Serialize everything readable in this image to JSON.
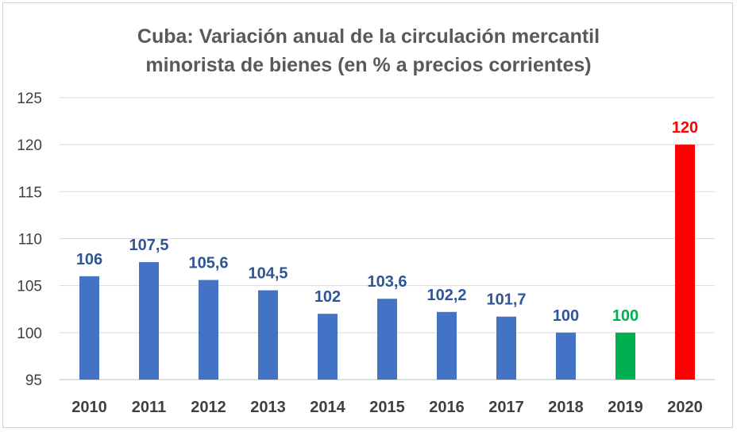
{
  "chart_data": {
    "type": "bar",
    "title": "Cuba: Variación anual de la circulación mercantil minorista de bienes (en % a precios corrientes)",
    "title_lines": [
      "Cuba: Variación anual de la circulación mercantil",
      "minorista de bienes (en % a precios corrientes)"
    ],
    "categories": [
      "2010",
      "2011",
      "2012",
      "2013",
      "2014",
      "2015",
      "2016",
      "2017",
      "2018",
      "2019",
      "2020"
    ],
    "values": [
      106,
      107.5,
      105.6,
      104.5,
      102,
      103.6,
      102.2,
      101.7,
      100,
      100,
      120
    ],
    "data_labels": [
      "106",
      "107,5",
      "105,6",
      "104,5",
      "102",
      "103,6",
      "102,2",
      "101,7",
      "100",
      "100",
      "120"
    ],
    "ylim": [
      95,
      125
    ],
    "yticks": [
      95,
      100,
      105,
      110,
      115,
      120,
      125
    ],
    "grid": true,
    "xlabel": "",
    "ylabel": "",
    "colors": {
      "default_bar": "#4472c4",
      "default_label": "#2f5597",
      "highlight_2019": "#00b050",
      "highlight_2020": "#ff0000",
      "grid": "#d9d9d9",
      "axis": "#bfbfbf"
    },
    "bar_colors": [
      "#4472c4",
      "#4472c4",
      "#4472c4",
      "#4472c4",
      "#4472c4",
      "#4472c4",
      "#4472c4",
      "#4472c4",
      "#4472c4",
      "#00b050",
      "#ff0000"
    ],
    "label_colors": [
      "#2f5597",
      "#2f5597",
      "#2f5597",
      "#2f5597",
      "#2f5597",
      "#2f5597",
      "#2f5597",
      "#2f5597",
      "#2f5597",
      "#00b050",
      "#ff0000"
    ]
  }
}
